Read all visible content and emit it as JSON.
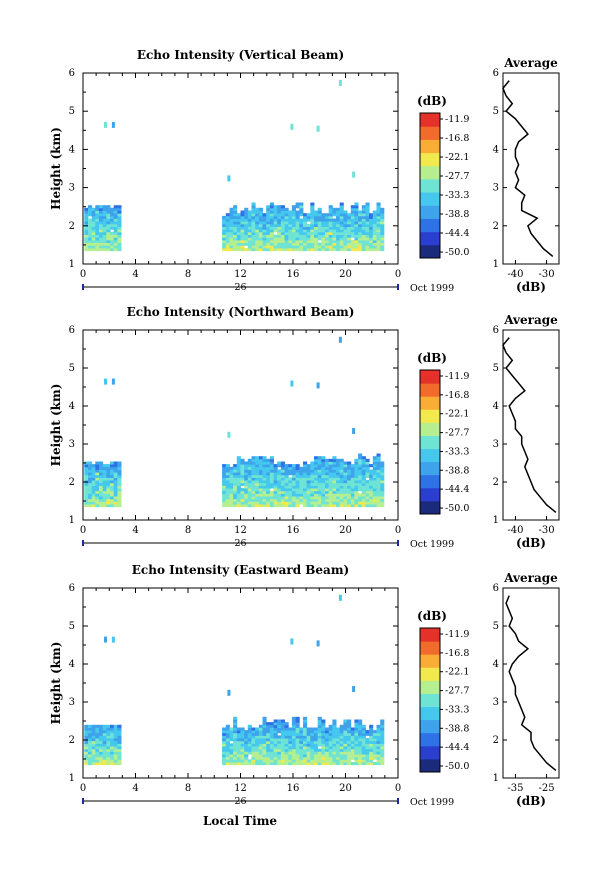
{
  "figure": {
    "xlabel": "Local Time",
    "date_label": "Oct 1999",
    "day_label": "26",
    "colorbar_unit": "(dB)",
    "colorbar_ticks": [
      "-11.9",
      "-16.8",
      "-22.1",
      "-27.7",
      "-33.3",
      "-38.8",
      "-44.4",
      "-50.0"
    ],
    "profile_title": "Average",
    "profile_xlabel": "(dB)"
  },
  "colors": {
    "colormap": [
      "#1b2a7a",
      "#2a3fd0",
      "#2f72e8",
      "#3ea3ea",
      "#45c8ee",
      "#6fe3d4",
      "#b5ef8f",
      "#f2e94c",
      "#f8ae35",
      "#f26a2c",
      "#e6302a"
    ]
  },
  "chart_data": [
    {
      "type": "heatmap",
      "title": "Echo Intensity (Vertical Beam)",
      "ylabel": "Height (km)",
      "x_ticks": [
        "0",
        "4",
        "8",
        "12",
        "16",
        "20",
        "0"
      ],
      "x_range_hours": [
        0,
        24
      ],
      "y_ticks": [
        "1",
        "2",
        "3",
        "4",
        "5",
        "6"
      ],
      "ylim_km": [
        1,
        6
      ],
      "value_range_db": [
        -50.0,
        -11.9
      ],
      "data_gaps_hours": [
        [
          3,
          10.5
        ]
      ],
      "echo_top_km": {
        "early_0_3h": 2.5,
        "late_10_23h": 2.6
      },
      "profile": {
        "title": "Average",
        "x_ticks": [
          "-40",
          "-30"
        ],
        "xlim_db": [
          -44,
          -26
        ],
        "heights_km": [
          1.2,
          1.4,
          1.6,
          1.8,
          2.0,
          2.2,
          2.4,
          2.6,
          2.8,
          3.0,
          3.2,
          3.4,
          3.6,
          3.8,
          4.0,
          4.2,
          4.4,
          4.6,
          4.8,
          5.0,
          5.2,
          5.4,
          5.6,
          5.8
        ],
        "values_db": [
          -28,
          -31,
          -33,
          -35,
          -36,
          -33,
          -38,
          -38,
          -37,
          -40,
          -39,
          -40,
          -39,
          -40,
          -40,
          -39,
          -36,
          -38,
          -40,
          -43,
          -41,
          -43,
          -44,
          -42
        ]
      }
    },
    {
      "type": "heatmap",
      "title": "Echo Intensity (Northward Beam)",
      "ylabel": "Height (km)",
      "x_ticks": [
        "0",
        "4",
        "8",
        "12",
        "16",
        "20",
        "0"
      ],
      "x_range_hours": [
        0,
        24
      ],
      "y_ticks": [
        "1",
        "2",
        "3",
        "4",
        "5",
        "6"
      ],
      "ylim_km": [
        1,
        6
      ],
      "value_range_db": [
        -50.0,
        -11.9
      ],
      "data_gaps_hours": [
        [
          3,
          10.5
        ]
      ],
      "echo_top_km": {
        "early_0_3h": 2.5,
        "late_10_23h": 2.7
      },
      "profile": {
        "title": "Average",
        "x_ticks": [
          "-40",
          "-30"
        ],
        "xlim_db": [
          -44,
          -26
        ],
        "heights_km": [
          1.2,
          1.4,
          1.6,
          1.8,
          2.0,
          2.2,
          2.4,
          2.6,
          2.8,
          3.0,
          3.2,
          3.4,
          3.6,
          3.8,
          4.0,
          4.2,
          4.4,
          4.6,
          4.8,
          5.0,
          5.2,
          5.4,
          5.6,
          5.8
        ],
        "values_db": [
          -27,
          -30,
          -32,
          -34,
          -35,
          -36,
          -37,
          -36,
          -37,
          -38,
          -38,
          -40,
          -40,
          -41,
          -42,
          -40,
          -37,
          -39,
          -41,
          -43,
          -41,
          -43,
          -44,
          -42
        ]
      }
    },
    {
      "type": "heatmap",
      "title": "Echo Intensity (Eastward Beam)",
      "ylabel": "Height (km)",
      "x_ticks": [
        "0",
        "4",
        "8",
        "12",
        "16",
        "20",
        "0"
      ],
      "x_range_hours": [
        0,
        24
      ],
      "y_ticks": [
        "1",
        "2",
        "3",
        "4",
        "5",
        "6"
      ],
      "ylim_km": [
        1,
        6
      ],
      "value_range_db": [
        -50.0,
        -11.9
      ],
      "data_gaps_hours": [
        [
          3,
          10.5
        ]
      ],
      "echo_top_km": {
        "early_0_3h": 2.4,
        "late_10_23h": 2.6
      },
      "profile": {
        "title": "Average",
        "x_ticks": [
          "-35",
          "-25"
        ],
        "xlim_db": [
          -39,
          -21
        ],
        "heights_km": [
          1.2,
          1.4,
          1.6,
          1.8,
          2.0,
          2.2,
          2.4,
          2.6,
          2.8,
          3.0,
          3.2,
          3.4,
          3.6,
          3.8,
          4.0,
          4.2,
          4.4,
          4.6,
          4.8,
          5.0,
          5.2,
          5.4,
          5.6,
          5.8
        ],
        "values_db": [
          -22,
          -25,
          -27,
          -29,
          -30,
          -30,
          -33,
          -32,
          -33,
          -34,
          -35,
          -35,
          -36,
          -37,
          -36,
          -34,
          -31,
          -34,
          -35,
          -37,
          -36,
          -37,
          -38,
          -37
        ]
      }
    }
  ]
}
